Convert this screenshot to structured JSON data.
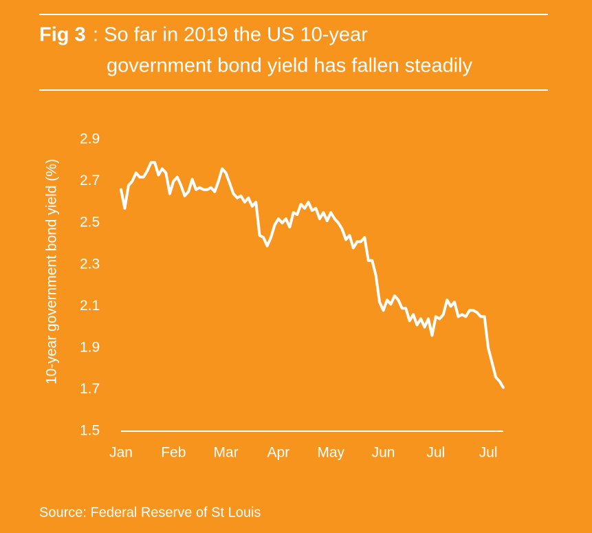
{
  "chart_data": {
    "type": "line",
    "title_label": "Fig 3",
    "title": ": So far in 2019 the US 10-year",
    "subtitle": "government bond yield has fallen steadily",
    "y_label": "10-year government bond yield (%)",
    "source": "Source: Federal Reserve of St Louis",
    "categories": [
      "Jan",
      null,
      null,
      null,
      null,
      null,
      null,
      null,
      null,
      null,
      null,
      null,
      null,
      null,
      "Feb",
      null,
      null,
      null,
      null,
      null,
      null,
      null,
      null,
      null,
      null,
      null,
      null,
      null,
      "Mar",
      null,
      null,
      null,
      null,
      null,
      null,
      null,
      null,
      null,
      null,
      null,
      null,
      null,
      "Apr",
      null,
      null,
      null,
      null,
      null,
      null,
      null,
      null,
      null,
      null,
      null,
      null,
      null,
      "May",
      null,
      null,
      null,
      null,
      null,
      null,
      null,
      null,
      null,
      null,
      null,
      null,
      null,
      "Jun",
      null,
      null,
      null,
      null,
      null,
      null,
      null,
      null,
      null,
      null,
      null,
      null,
      null,
      "Jul",
      null,
      null,
      null,
      null,
      null,
      null,
      null,
      null,
      null,
      null,
      null,
      null,
      null,
      "Jul",
      null,
      null,
      null,
      null
    ],
    "series": [
      {
        "color": "#ffffff",
        "values": [
          2.66,
          2.57,
          2.68,
          2.7,
          2.74,
          2.72,
          2.72,
          2.75,
          2.79,
          2.79,
          2.73,
          2.76,
          2.74,
          2.64,
          2.7,
          2.72,
          2.68,
          2.63,
          2.65,
          2.71,
          2.66,
          2.67,
          2.66,
          2.66,
          2.67,
          2.65,
          2.7,
          2.76,
          2.74,
          2.69,
          2.64,
          2.62,
          2.63,
          2.6,
          2.62,
          2.58,
          2.6,
          2.44,
          2.43,
          2.39,
          2.43,
          2.49,
          2.52,
          2.5,
          2.52,
          2.48,
          2.55,
          2.54,
          2.59,
          2.57,
          2.6,
          2.56,
          2.57,
          2.52,
          2.55,
          2.51,
          2.55,
          2.52,
          2.5,
          2.47,
          2.42,
          2.44,
          2.38,
          2.41,
          2.41,
          2.43,
          2.32,
          2.32,
          2.25,
          2.12,
          2.08,
          2.13,
          2.11,
          2.15,
          2.13,
          2.09,
          2.09,
          2.03,
          2.06,
          2.01,
          2.04,
          2.0,
          2.04,
          1.96,
          2.05,
          2.04,
          2.06,
          2.13,
          2.1,
          2.12,
          2.05,
          2.06,
          2.05,
          2.08,
          2.08,
          2.07,
          2.05,
          2.05,
          1.9,
          1.83,
          1.76,
          1.74,
          1.71
        ]
      }
    ],
    "ylim": [
      1.5,
      2.9
    ],
    "yticks": [
      1.5,
      1.7,
      1.9,
      2.1,
      2.3,
      2.5,
      2.7,
      2.9
    ],
    "grid": false
  }
}
